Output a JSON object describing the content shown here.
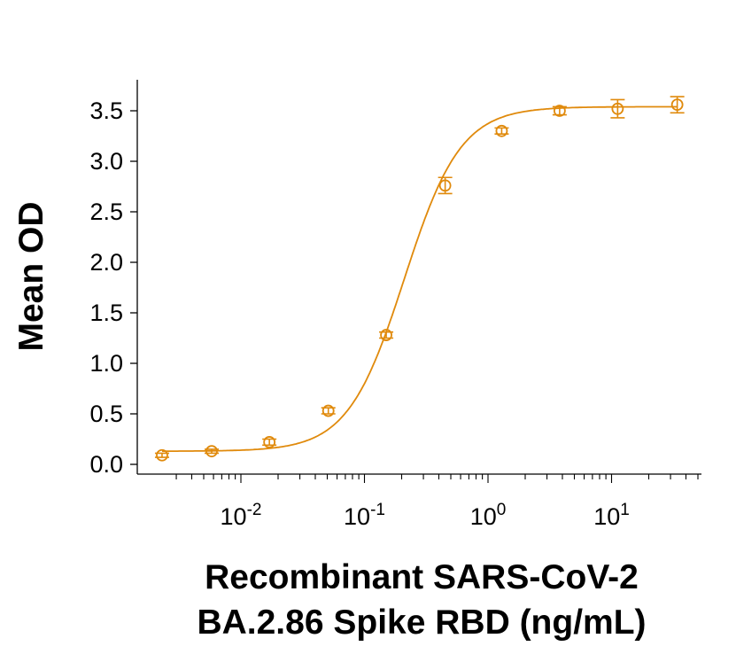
{
  "chart_data": {
    "type": "scatter",
    "xlabel": [
      "Recombinant SARS-CoV-2",
      "BA.2.86 Spike RBD (ng/mL)"
    ],
    "ylabel": "Mean OD",
    "x_scale": "log",
    "xlim": [
      0.0018,
      50
    ],
    "ylim": [
      0,
      3.7
    ],
    "x_ticks": [
      {
        "value": 0.01,
        "base": "10",
        "exp": "-2"
      },
      {
        "value": 0.1,
        "base": "10",
        "exp": "-1"
      },
      {
        "value": 1,
        "base": "10",
        "exp": "0"
      },
      {
        "value": 10,
        "base": "10",
        "exp": "1"
      }
    ],
    "y_ticks": [
      "0.0",
      "0.5",
      "1.0",
      "1.5",
      "2.0",
      "2.5",
      "3.0",
      "3.5"
    ],
    "grid": false,
    "color": "#E08A0C",
    "series": [
      {
        "x": [
          0.0023,
          0.0058,
          0.017,
          0.051,
          0.15,
          0.45,
          1.29,
          3.8,
          11.2,
          34
        ],
        "y": [
          0.09,
          0.13,
          0.22,
          0.53,
          1.28,
          2.76,
          3.3,
          3.5,
          3.52,
          3.56
        ],
        "error": [
          0.02,
          0.02,
          0.03,
          0.03,
          0.03,
          0.08,
          0.03,
          0.04,
          0.09,
          0.08
        ],
        "fit": {
          "model": "4PL",
          "bottom": 0.13,
          "top": 3.54,
          "ec50": 0.21,
          "hill": 1.9
        }
      }
    ]
  }
}
